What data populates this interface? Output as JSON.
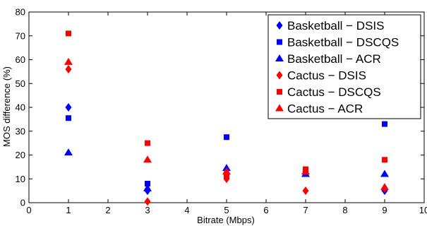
{
  "chart_data": {
    "type": "scatter",
    "xlabel": "Bitrate (Mbps)",
    "ylabel": "MOS difference (%)",
    "xlim": [
      0,
      10
    ],
    "ylim": [
      0,
      80
    ],
    "xticks": [
      0,
      1,
      2,
      3,
      4,
      5,
      6,
      7,
      8,
      9,
      10
    ],
    "yticks": [
      0,
      10,
      20,
      30,
      40,
      50,
      60,
      70,
      80
    ],
    "grid": false,
    "legend_position": "top-right",
    "series": [
      {
        "name": "Basketball − DSIS",
        "color": "#0000ff",
        "marker": "diamond",
        "points": [
          {
            "x": 1,
            "y": 40
          },
          {
            "x": 3,
            "y": 5
          },
          {
            "x": 5,
            "y": 12
          },
          {
            "x": 7,
            "y": 13
          },
          {
            "x": 9,
            "y": 5
          }
        ]
      },
      {
        "name": "Basketball − DSCQS",
        "color": "#0000ff",
        "marker": "square",
        "points": [
          {
            "x": 1,
            "y": 35.5
          },
          {
            "x": 3,
            "y": 8
          },
          {
            "x": 5,
            "y": 27.5
          },
          {
            "x": 7,
            "y": 14
          },
          {
            "x": 9,
            "y": 33
          }
        ]
      },
      {
        "name": "Basketball − ACR",
        "color": "#0000ff",
        "marker": "triangle",
        "points": [
          {
            "x": 1,
            "y": 21
          },
          {
            "x": 3,
            "y": 6
          },
          {
            "x": 5,
            "y": 14.5
          },
          {
            "x": 7,
            "y": 12
          },
          {
            "x": 9,
            "y": 12
          }
        ]
      },
      {
        "name": "Cactus − DSIS",
        "color": "#ff0000",
        "marker": "diamond",
        "points": [
          {
            "x": 1,
            "y": 56
          },
          {
            "x": 3,
            "y": 0.5
          },
          {
            "x": 5,
            "y": 10
          },
          {
            "x": 7,
            "y": 5
          },
          {
            "x": 9,
            "y": 6
          }
        ]
      },
      {
        "name": "Cactus − DSCQS",
        "color": "#ff0000",
        "marker": "square",
        "points": [
          {
            "x": 1,
            "y": 71
          },
          {
            "x": 3,
            "y": 25
          },
          {
            "x": 5,
            "y": 11
          },
          {
            "x": 7,
            "y": 14
          },
          {
            "x": 9,
            "y": 18
          }
        ]
      },
      {
        "name": "Cactus − ACR",
        "color": "#ff0000",
        "marker": "triangle",
        "points": [
          {
            "x": 1,
            "y": 59
          },
          {
            "x": 3,
            "y": 18
          },
          {
            "x": 5,
            "y": 13
          },
          {
            "x": 7,
            "y": 13
          },
          {
            "x": 9,
            "y": 6.5
          }
        ]
      }
    ]
  }
}
